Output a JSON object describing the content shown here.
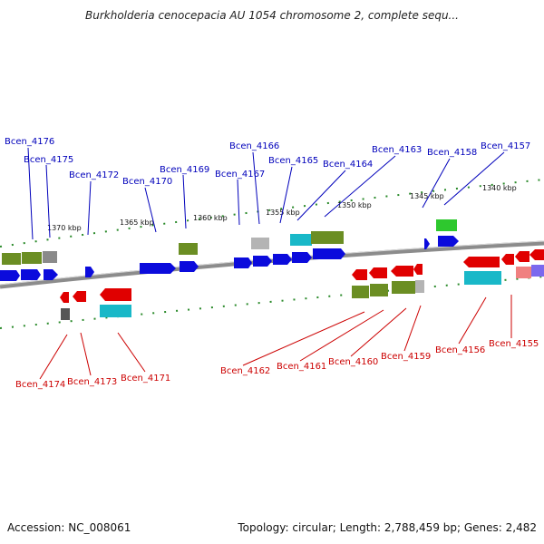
{
  "title": "Burkholderia cenocepacia AU 1054 chromosome 2, complete sequ...",
  "footer": {
    "accession": "Accession: NC_008061",
    "summary": "Topology: circular; Length: 2,788,459 bp; Genes: 2,482"
  },
  "colors": {
    "upper_label": "#0000bb",
    "lower_label": "#cc0000",
    "backbone": "#8c8c8c",
    "tick": "#2a8a2a",
    "blue_gene": "#0b0bdc",
    "red_gene": "#e00000",
    "olive_feature": "#6b8e23",
    "cyan_feature": "#19b8c8",
    "gray_feature": "#8a8a8a",
    "green_feature": "#2ec82e",
    "purple_feature": "#7b68ee"
  },
  "upper_labels": [
    "Bcen_4176",
    "Bcen_4175",
    "Bcen_4172",
    "Bcen_4170",
    "Bcen_4169",
    "Bcen_4167",
    "Bcen_4166",
    "Bcen_4165",
    "Bcen_4164",
    "Bcen_4163",
    "Bcen_4158",
    "Bcen_4157"
  ],
  "lower_labels": [
    "Bcen_4174",
    "Bcen_4173",
    "Bcen_4171",
    "Bcen_4162",
    "Bcen_4161",
    "Bcen_4160",
    "Bcen_4159",
    "Bcen_4156",
    "Bcen_4155"
  ],
  "kbp_labels": [
    "1370 kbp",
    "1365 kbp",
    "1360 kbp",
    "1355 kbp",
    "1350 kbp",
    "1345 kbp",
    "1340 kbp"
  ]
}
